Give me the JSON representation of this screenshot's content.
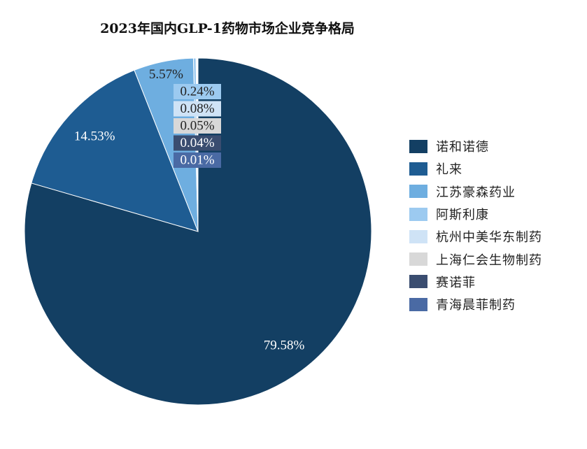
{
  "chart_data": {
    "type": "pie",
    "title": "2023年国内GLP-1药物市场企业竞争格局",
    "legend_position": "right",
    "slices": [
      {
        "name": "诺和诺德",
        "value": 79.58,
        "label": "79.58%",
        "color": "#133f63"
      },
      {
        "name": "礼来",
        "value": 14.53,
        "label": "14.53%",
        "color": "#1e5c92"
      },
      {
        "name": "江苏豪森药业",
        "value": 5.57,
        "label": "5.57%",
        "color": "#6eaee0"
      },
      {
        "name": "阿斯利康",
        "value": 0.24,
        "label": "0.24%",
        "color": "#9ccaf0"
      },
      {
        "name": "杭州中美华东制药",
        "value": 0.08,
        "label": "0.08%",
        "color": "#cfe3f6"
      },
      {
        "name": "上海仁会生物制药",
        "value": 0.05,
        "label": "0.05%",
        "color": "#d8d8d8"
      },
      {
        "name": "赛诺菲",
        "value": 0.04,
        "label": "0.04%",
        "color": "#3a4d70"
      },
      {
        "name": "青海晨菲制药",
        "value": 0.01,
        "label": "0.01%",
        "color": "#4a6aa4"
      }
    ]
  }
}
